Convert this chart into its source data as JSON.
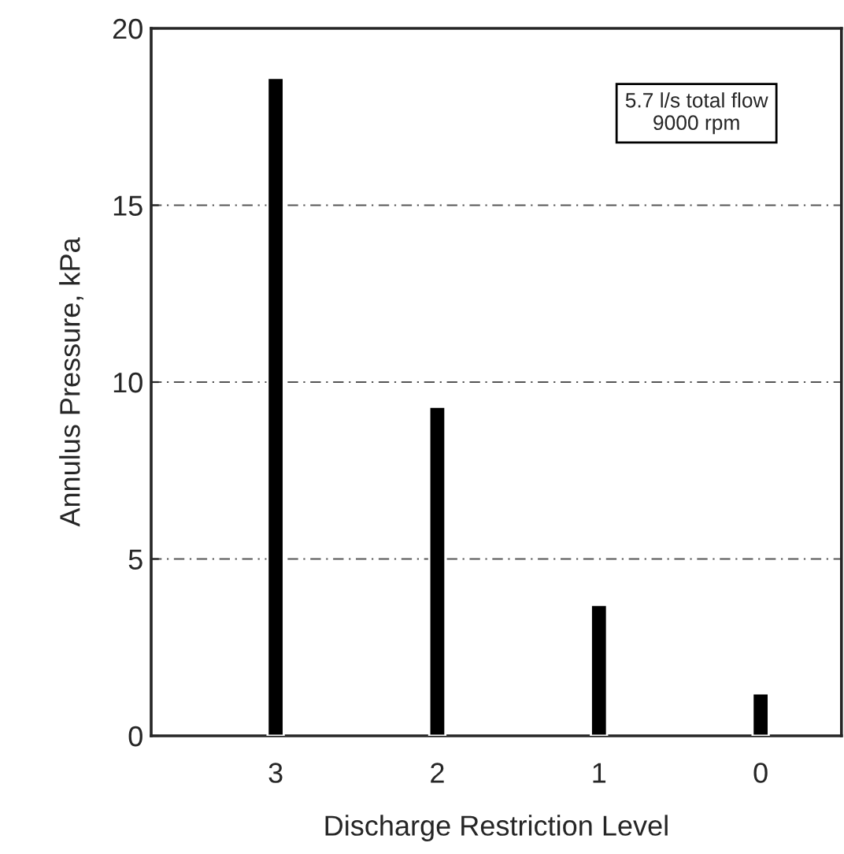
{
  "chart_data": {
    "type": "bar",
    "xlabel": "Discharge Restriction Level",
    "ylabel": "Annulus Pressure, kPa",
    "categories": [
      "3",
      "2",
      "1",
      "0"
    ],
    "values": [
      18.6,
      9.3,
      3.7,
      1.2
    ],
    "color": "#000000",
    "ylim": [
      0,
      20
    ],
    "yticks": [
      0,
      5,
      10,
      15,
      20
    ],
    "grid": "y",
    "annotations": [
      "5.7 l/s total flow\n9000 rpm"
    ]
  }
}
